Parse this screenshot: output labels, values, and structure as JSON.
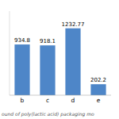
{
  "chart_data": {
    "type": "bar",
    "categories": [
      "b",
      "c",
      "d",
      "e"
    ],
    "values": [
      934.8,
      918.1,
      1232.77,
      202.2
    ],
    "color": "#4E86C8",
    "ylim": [
      0,
      1550
    ],
    "data_labels": true,
    "tick_labels": "x",
    "caption": "ound of poly(lactic acid) packaging mo"
  }
}
